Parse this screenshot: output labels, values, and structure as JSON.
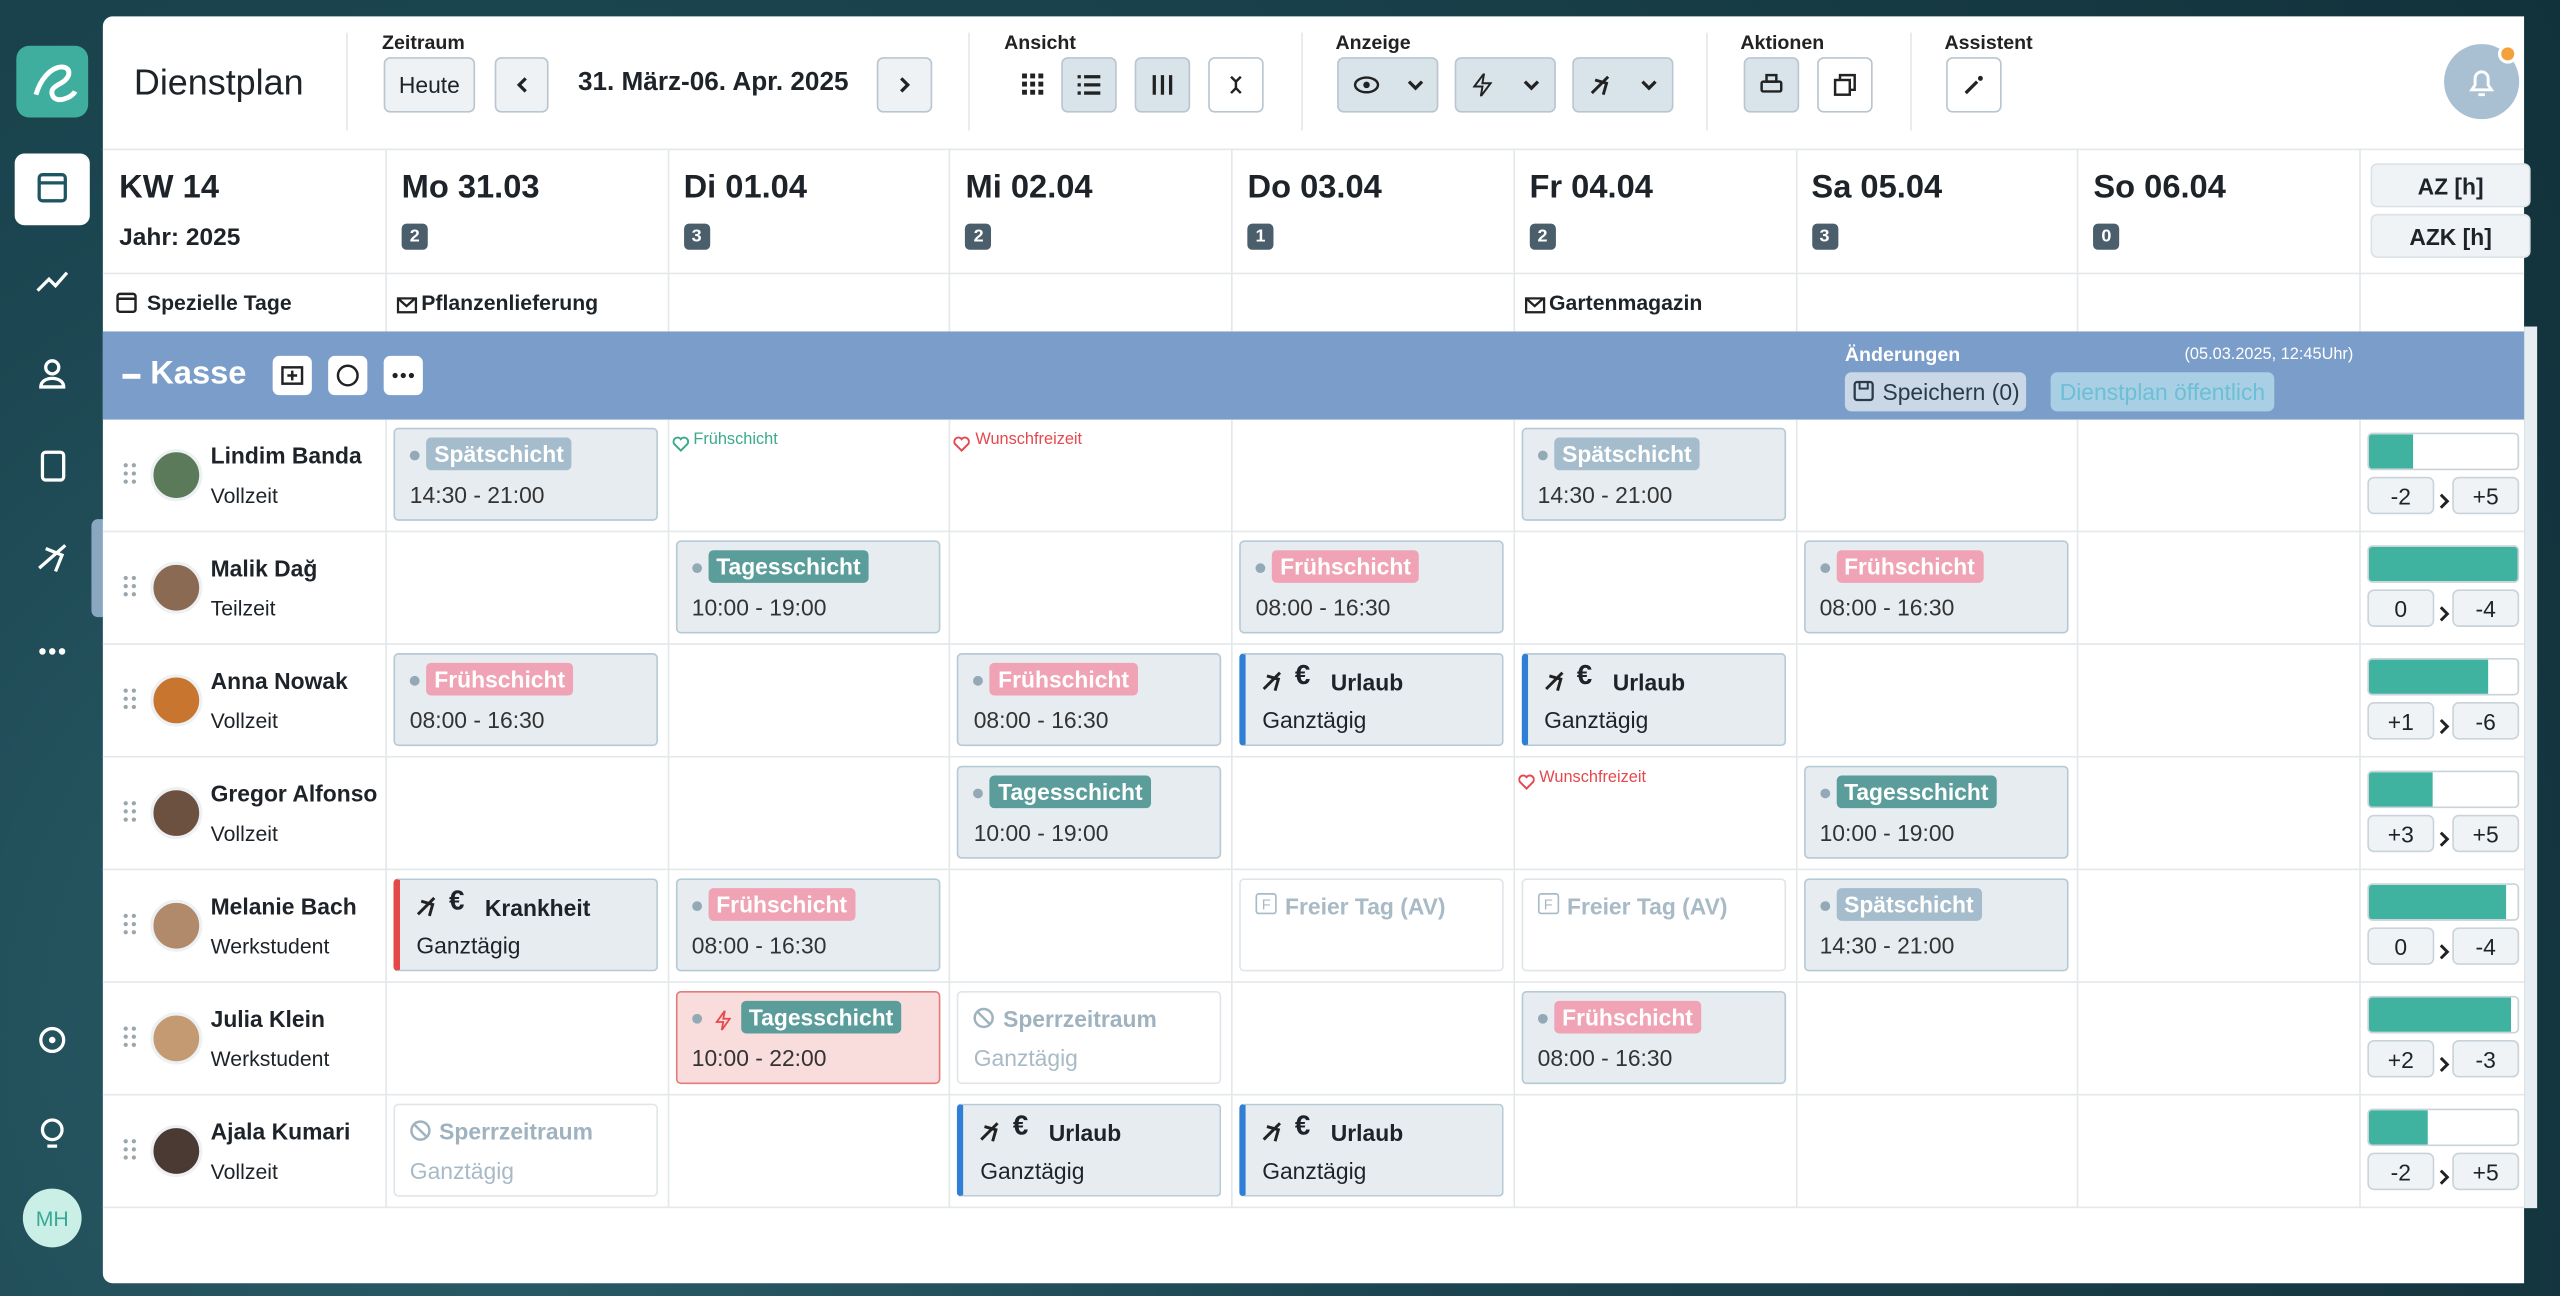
{
  "sidebar": {
    "user_initials": "MH"
  },
  "header": {
    "title": "Dienstplan",
    "zeitraum": {
      "label": "Zeitraum",
      "today_button": "Heute",
      "range": "31. März-06. Apr. 2025"
    },
    "ansicht": "Ansicht",
    "anzeige": "Anzeige",
    "aktionen": "Aktionen",
    "assistent": "Assistent"
  },
  "week": {
    "label": "KW 14",
    "year": "Jahr: 2025",
    "days": [
      {
        "label": "Mo 31.03",
        "count": 2
      },
      {
        "label": "Di 01.04",
        "count": 3
      },
      {
        "label": "Mi 02.04",
        "count": 2
      },
      {
        "label": "Do 03.04",
        "count": 1
      },
      {
        "label": "Fr 04.04",
        "count": 2
      },
      {
        "label": "Sa 05.04",
        "count": 3
      },
      {
        "label": "So 06.04",
        "count": 0
      }
    ],
    "summary_headers": [
      "AZ [h]",
      "AZK [h]"
    ]
  },
  "special_days": {
    "label": "Spezielle Tage",
    "entries": [
      "Pflanzenlieferung",
      null,
      null,
      null,
      "Gartenmagazin",
      null,
      null
    ]
  },
  "group": {
    "name": "Kasse",
    "changes_label": "Änderungen",
    "timestamp": "(05.03.2025, 12:45Uhr)",
    "save_button": "Speichern (0)",
    "publish_button": "Dienstplan öffentlich"
  },
  "employees": [
    {
      "name": "Lindim Banda",
      "contract": "Vollzeit",
      "az": "-2",
      "azk": "+5",
      "hours_bar": 30,
      "cells": [
        {
          "type": "shift",
          "label": "Spätschicht",
          "time": "14:30 - 21:00",
          "style": "late"
        },
        {
          "type": "wish",
          "label": "Frühschicht",
          "tone": "positive"
        },
        {
          "type": "wish",
          "label": "Wunschfreizeit",
          "tone": "negative"
        },
        null,
        {
          "type": "shift",
          "label": "Spätschicht",
          "time": "14:30 - 21:00",
          "style": "late"
        },
        null,
        null
      ]
    },
    {
      "name": "Malik Dağ",
      "contract": "Teilzeit",
      "az": "0",
      "azk": "-4",
      "hours_bar": 100,
      "cells": [
        null,
        {
          "type": "shift",
          "label": "Tagesschicht",
          "time": "10:00 - 19:00",
          "style": "day"
        },
        null,
        {
          "type": "shift",
          "label": "Frühschicht",
          "time": "08:00 - 16:30",
          "style": "early"
        },
        null,
        {
          "type": "shift",
          "label": "Frühschicht",
          "time": "08:00 - 16:30",
          "style": "early"
        },
        null
      ]
    },
    {
      "name": "Anna Nowak",
      "contract": "Vollzeit",
      "az": "+1",
      "azk": "-6",
      "hours_bar": 80,
      "cells": [
        {
          "type": "shift",
          "label": "Frühschicht",
          "time": "08:00 - 16:30",
          "style": "early"
        },
        null,
        {
          "type": "shift",
          "label": "Frühschicht",
          "time": "08:00 - 16:30",
          "style": "early"
        },
        {
          "type": "absence",
          "label": "Urlaub",
          "symbol": "€",
          "duration": "Ganztägig",
          "style": "vacation"
        },
        {
          "type": "absence",
          "label": "Urlaub",
          "symbol": "€",
          "duration": "Ganztägig",
          "style": "vacation"
        },
        null,
        null
      ]
    },
    {
      "name": "Gregor Alfonso",
      "contract": "Vollzeit",
      "az": "+3",
      "azk": "+5",
      "hours_bar": 43,
      "cells": [
        null,
        null,
        {
          "type": "shift",
          "label": "Tagesschicht",
          "time": "10:00 - 19:00",
          "style": "day"
        },
        null,
        {
          "type": "wish",
          "label": "Wunschfreizeit",
          "tone": "negative"
        },
        {
          "type": "shift",
          "label": "Tagesschicht",
          "time": "10:00 - 19:00",
          "style": "day"
        },
        null
      ]
    },
    {
      "name": "Melanie Bach",
      "contract": "Werkstudent",
      "az": "0",
      "azk": "-4",
      "hours_bar": 92,
      "cells": [
        {
          "type": "absence",
          "label": "Krankheit",
          "symbol": "€",
          "duration": "Ganztägig",
          "style": "sick"
        },
        {
          "type": "shift",
          "label": "Frühschicht",
          "time": "08:00 - 16:30",
          "style": "early"
        },
        null,
        {
          "type": "free",
          "badge": "F",
          "label": "Freier Tag (AV)"
        },
        {
          "type": "free",
          "badge": "F",
          "label": "Freier Tag (AV)"
        },
        {
          "type": "shift",
          "label": "Spätschicht",
          "time": "14:30 - 21:00",
          "style": "late"
        },
        null
      ]
    },
    {
      "name": "Julia Klein",
      "contract": "Werkstudent",
      "az": "+2",
      "azk": "-3",
      "hours_bar": 96,
      "cells": [
        null,
        {
          "type": "shift",
          "label": "Tagesschicht",
          "time": "10:00 - 22:00",
          "style": "day",
          "conflict": true
        },
        {
          "type": "blocked",
          "label": "Sperrzeitraum",
          "duration": "Ganztägig"
        },
        null,
        {
          "type": "shift",
          "label": "Frühschicht",
          "time": "08:00 - 16:30",
          "style": "early"
        },
        null,
        null
      ]
    },
    {
      "name": "Ajala Kumari",
      "contract": "Vollzeit",
      "az": "-2",
      "azk": "+5",
      "hours_bar": 40,
      "cells": [
        {
          "type": "blocked",
          "label": "Sperrzeitraum",
          "duration": "Ganztägig"
        },
        null,
        {
          "type": "absence",
          "label": "Urlaub",
          "symbol": "€",
          "duration": "Ganztägig",
          "style": "vacation"
        },
        {
          "type": "absence",
          "label": "Urlaub",
          "symbol": "€",
          "duration": "Ganztägig",
          "style": "vacation"
        },
        null,
        null,
        null
      ]
    }
  ]
}
